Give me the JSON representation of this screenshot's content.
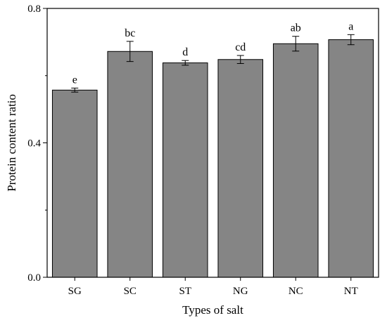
{
  "chart_data": {
    "type": "bar",
    "xlabel": "Types of salt",
    "ylabel": "Protein content ratio",
    "ylim": [
      0.0,
      0.8
    ],
    "yticks": [
      "0.0",
      "0.4",
      "0.8"
    ],
    "categories": [
      "SG",
      "SC",
      "ST",
      "NG",
      "NC",
      "NT"
    ],
    "values": [
      0.557,
      0.672,
      0.638,
      0.648,
      0.695,
      0.707
    ],
    "errors": [
      0.006,
      0.03,
      0.007,
      0.012,
      0.022,
      0.015
    ],
    "significance_labels": [
      "e",
      "bc",
      "d",
      "cd",
      "ab",
      "a"
    ],
    "bar_color": "#858585",
    "grid": false,
    "legend": "none"
  }
}
